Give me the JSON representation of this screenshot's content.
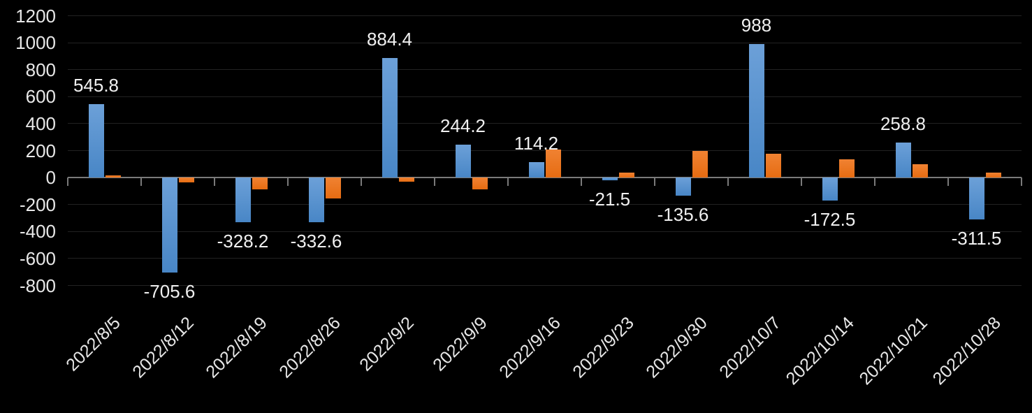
{
  "chart_data": {
    "type": "bar",
    "title": "",
    "xlabel": "",
    "ylabel": "",
    "categories": [
      "2022/8/5",
      "2022/8/12",
      "2022/8/19",
      "2022/8/26",
      "2022/9/2",
      "2022/9/9",
      "2022/9/16",
      "2022/9/23",
      "2022/9/30",
      "2022/10/7",
      "2022/10/14",
      "2022/10/21",
      "2022/10/28"
    ],
    "series": [
      {
        "name": "blue-series",
        "color_top": "#6ca0d8",
        "color_bottom": "#4886c6",
        "values": [
          545.8,
          -705.6,
          -328.2,
          -332.6,
          884.4,
          244.2,
          114.2,
          -21.5,
          -135.6,
          988,
          -172.5,
          258.8,
          -311.5
        ],
        "data_labels": [
          "545.8",
          "-705.6",
          "-328.2",
          "-332.6",
          "884.4",
          "244.2",
          "114.2",
          "-21.5",
          "-135.6",
          "988",
          "-172.5",
          "258.8",
          "-311.5"
        ]
      },
      {
        "name": "orange-series",
        "color_top": "#f08232",
        "color_bottom": "#e66c12",
        "values": [
          15,
          -38,
          -85,
          -155,
          -28,
          -88,
          210,
          35,
          200,
          175,
          135,
          100,
          35
        ],
        "data_labels": []
      }
    ],
    "y_axis": {
      "min": -800,
      "max": 1200,
      "step": 200,
      "tick_labels": [
        "1200",
        "1000",
        "800",
        "600",
        "400",
        "200",
        "0",
        "-200",
        "-400",
        "-600",
        "-800"
      ]
    },
    "x_axis": {
      "label_rotation_deg": -45
    },
    "grid": true,
    "legend": false,
    "colors": {
      "background": "#000000",
      "gridline": "#222222",
      "axis": "#7a7a7a",
      "axis_label_text": "#e8e8e8",
      "data_label_text": "#f0f0f0"
    }
  }
}
